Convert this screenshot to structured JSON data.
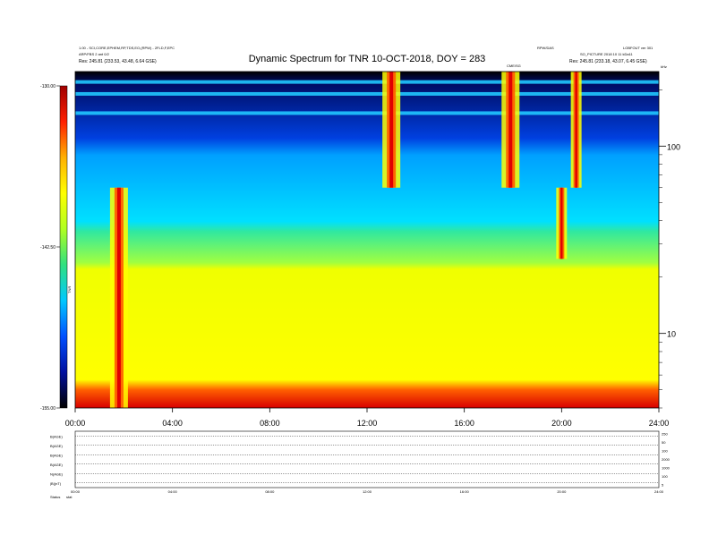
{
  "chart_data": {
    "type": "heatmap",
    "title": "Dynamic Spectrum for TNR 10-OCT-2018, DOY = 283",
    "header": {
      "top_left_1": "1.00 - SCI,CORE,EPHEM,RP,TDS,EO,(RPW) - 2FLD,F,EPC",
      "top_left_2": "ARP/FBS 2 ant 0/2",
      "top_left_3": "Res:   245.81 (233.53, 43.48, 6.64 GSE)",
      "top_right_1": "RPW/DAS",
      "top_right_2": "LOBFOUT ver 301",
      "top_right_3": "SO_PICTURE 2018 10 11 kDa11",
      "top_right_4": "Res:   245.81 (233.18, 43.07, 6.45 GSE)",
      "event_label": "CME/SG",
      "unit_label": "kHz"
    },
    "x": {
      "label": "",
      "unit": "hours UT",
      "range": [
        0,
        24
      ],
      "tick_labels": [
        "00:00",
        "04:00",
        "08:00",
        "12:00",
        "16:00",
        "20:00",
        "24:00"
      ]
    },
    "y": {
      "label": "",
      "scale": "log",
      "unit": "kHz",
      "range": [
        4,
        250
      ],
      "tick_labels": [
        "100",
        "10"
      ]
    },
    "colorbar": {
      "label": "TNR",
      "range": [
        -155.0,
        -130.0
      ],
      "tick_labels": [
        "-130.00",
        "-142.50",
        "-155.00"
      ],
      "colormap": [
        "#000000",
        "#0010a0",
        "#0050ff",
        "#00c8ff",
        "#30e080",
        "#b0ff20",
        "#ffff00",
        "#ffb000",
        "#ff2000",
        "#a00000"
      ]
    },
    "bursts": [
      {
        "t": 1.8,
        "f_low": 4,
        "f_high": 60,
        "intensity": "strong"
      },
      {
        "t": 13.0,
        "f_low": 60,
        "f_high": 250,
        "intensity": "strong"
      },
      {
        "t": 17.9,
        "f_low": 60,
        "f_high": 250,
        "intensity": "strong"
      },
      {
        "t": 20.0,
        "f_low": 25,
        "f_high": 60,
        "intensity": "moderate"
      },
      {
        "t": 20.6,
        "f_low": 60,
        "f_high": 250,
        "intensity": "moderate"
      }
    ],
    "background_profile_kHz": {
      "red_below": 5,
      "yellow_below": 22,
      "green_below": 35,
      "cyan_below": 110,
      "blue_below": 220
    },
    "bottom_panels": {
      "labels": [
        "B(AGE)",
        "B(AGE)",
        "B(AGE)",
        "B(AGE)",
        "N(AGE)",
        "|B|(nT)"
      ],
      "right_ticks": [
        "250",
        "50",
        "100",
        "2000",
        "1000",
        "100",
        "5"
      ],
      "x_tick_labels": [
        "00:00",
        "04:00",
        "08:00",
        "12:00",
        "16:00",
        "20:00",
        "24:00"
      ],
      "footer_label": "Status",
      "footer_label2": "stat"
    }
  }
}
